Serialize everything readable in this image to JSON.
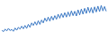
{
  "chart_data": {
    "type": "line",
    "marker": "circle",
    "color": "#3a78c4",
    "tick_labels": false,
    "grid": false,
    "categories": [
      null,
      null,
      null,
      null,
      null,
      null,
      null,
      null,
      null,
      null,
      null,
      null,
      null,
      null,
      null,
      null,
      null,
      null,
      null,
      null,
      null,
      null,
      null,
      null,
      null,
      null,
      null,
      null,
      null,
      null,
      null,
      null,
      null,
      null,
      null,
      null,
      null,
      null,
      null,
      null,
      null,
      null,
      null,
      null,
      null,
      null,
      null,
      null,
      null,
      null,
      null,
      null,
      null,
      null,
      null,
      null,
      null,
      null,
      null,
      null,
      null,
      null,
      null,
      null
    ],
    "values": [
      22,
      18,
      25,
      20,
      27,
      21,
      24,
      19,
      28,
      22,
      30,
      25,
      33,
      26,
      35,
      27,
      38,
      30,
      42,
      35,
      45,
      36,
      48,
      38,
      50,
      42,
      55,
      46,
      58,
      47,
      60,
      50,
      62,
      52,
      66,
      55,
      68,
      57,
      70,
      58,
      72,
      60,
      75,
      62,
      74,
      61,
      78,
      64,
      80,
      66,
      82,
      68,
      85,
      70,
      84,
      69,
      86,
      72,
      88,
      73,
      90,
      75,
      87,
      74
    ],
    "ylim": [
      0,
      100
    ]
  }
}
